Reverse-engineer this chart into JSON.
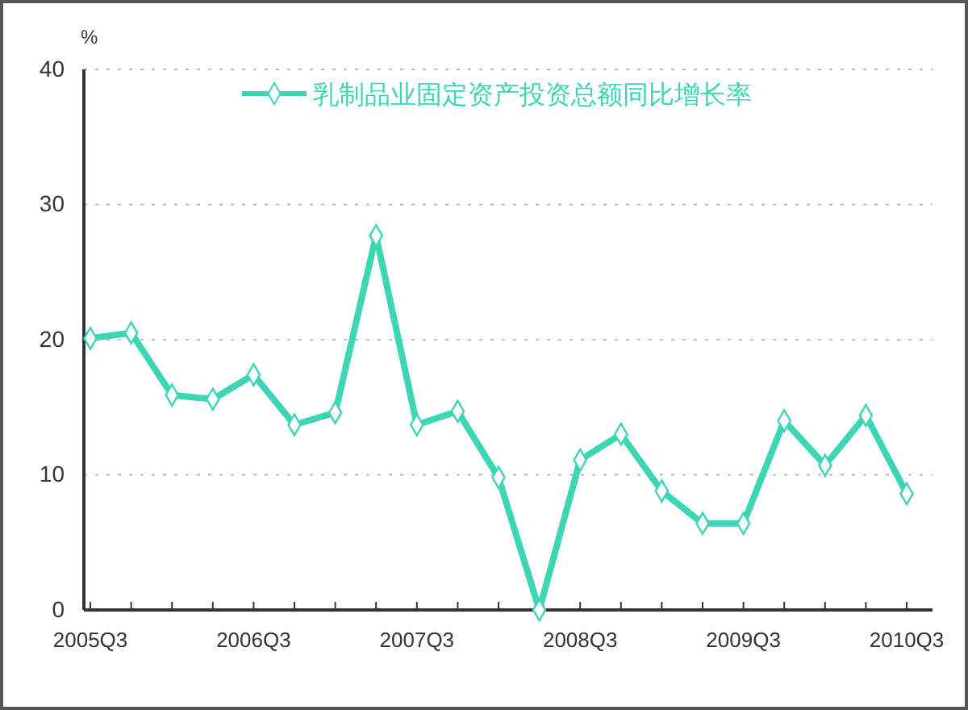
{
  "chart_data": {
    "type": "line",
    "ylabel": "%",
    "categories": [
      "2005Q3",
      null,
      null,
      null,
      "2006Q3",
      null,
      null,
      null,
      "2007Q3",
      null,
      null,
      null,
      "2008Q3",
      null,
      null,
      null,
      "2009Q3",
      null,
      null,
      null,
      "2010Q3"
    ],
    "series": [
      {
        "name": "乳制品业固定资产投资总额同比增长率",
        "color": "#3cd6b4",
        "values": [
          20.1,
          20.5,
          15.9,
          15.6,
          17.4,
          13.7,
          14.6,
          27.7,
          13.7,
          14.7,
          9.8,
          0,
          11.1,
          13.0,
          8.8,
          6.4,
          6.4,
          14.0,
          10.7,
          14.4,
          8.6
        ]
      }
    ],
    "ylim": [
      0,
      40
    ],
    "yticks": [
      0,
      10,
      20,
      30,
      40
    ],
    "grid": "y",
    "legend": "top",
    "marker": "diamond",
    "line_style": "solid"
  }
}
